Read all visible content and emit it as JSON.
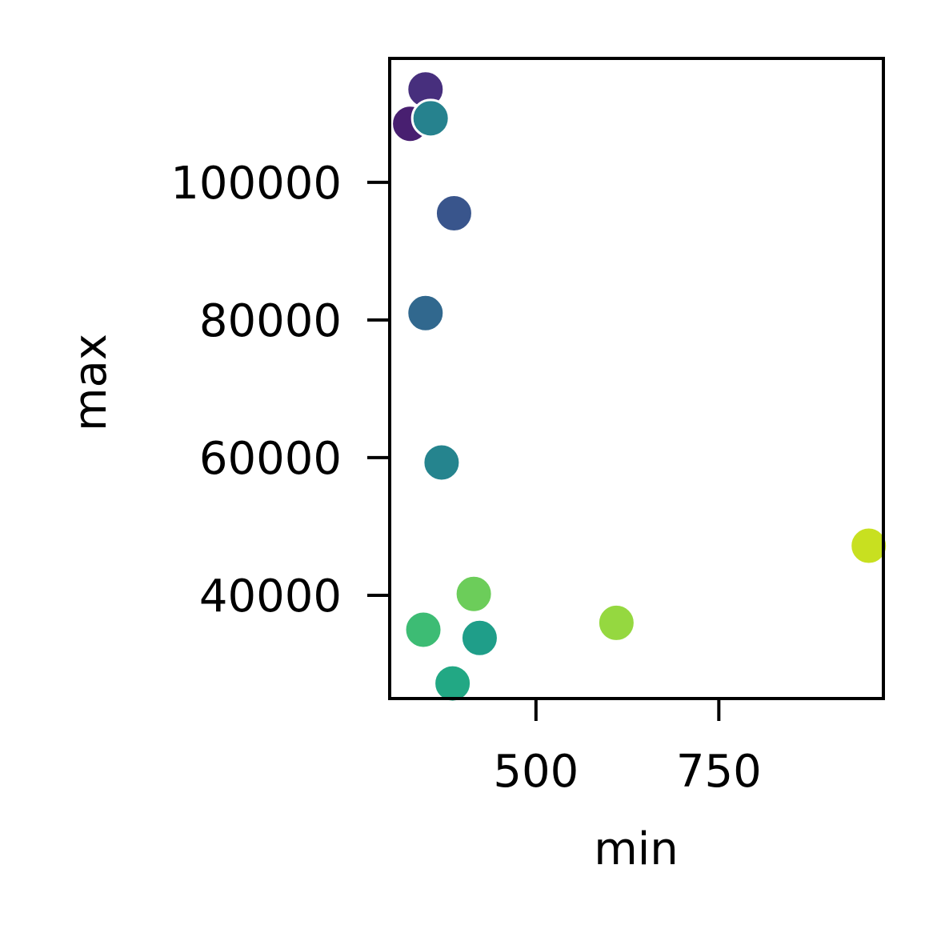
{
  "chart_data": {
    "type": "scatter",
    "xlabel": "min",
    "ylabel": "max",
    "xlim": [
      300,
      975
    ],
    "ylim": [
      25000,
      118000
    ],
    "xticks": [
      500,
      750
    ],
    "xtick_labels": [
      "500",
      "750"
    ],
    "yticks": [
      40000,
      60000,
      80000,
      100000
    ],
    "ytick_labels": [
      "40000",
      "60000",
      "80000",
      "100000"
    ],
    "grid": false,
    "points": [
      {
        "x": 328,
        "y": 108500,
        "color": "#481f70"
      },
      {
        "x": 349,
        "y": 113500,
        "color": "#472f7d"
      },
      {
        "x": 388,
        "y": 95500,
        "color": "#39558c"
      },
      {
        "x": 349,
        "y": 81000,
        "color": "#31688e"
      },
      {
        "x": 356,
        "y": 109300,
        "color": "#26828e"
      },
      {
        "x": 371,
        "y": 59300,
        "color": "#25848e"
      },
      {
        "x": 423,
        "y": 33800,
        "color": "#1f9e89"
      },
      {
        "x": 386,
        "y": 27200,
        "color": "#22a884"
      },
      {
        "x": 346,
        "y": 35000,
        "color": "#3dbc74"
      },
      {
        "x": 415,
        "y": 40200,
        "color": "#6ccd5a"
      },
      {
        "x": 610,
        "y": 36000,
        "color": "#95d840"
      },
      {
        "x": 955,
        "y": 47200,
        "color": "#c8e020"
      }
    ]
  }
}
